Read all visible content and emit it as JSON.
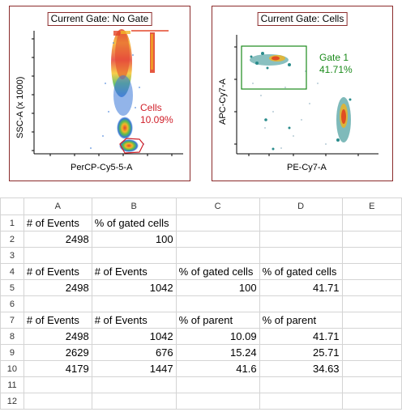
{
  "plot1": {
    "title": "Current Gate: No Gate",
    "ylabel": "SSC-A (x 1000)",
    "xlabel": "PerCP-Cy5-5-A",
    "gate_label": "Cells",
    "gate_value": "10.09%",
    "gate_color": "#d0202a"
  },
  "plot2": {
    "title": "Current Gate: Cells",
    "ylabel": "APC-Cy7-A",
    "xlabel": "PE-Cy7-A",
    "gate_label": "Gate 1",
    "gate_value": "41.71%",
    "gate_color": "#1a8a1a"
  },
  "sheet": {
    "columns": [
      "A",
      "B",
      "C",
      "D",
      "E"
    ],
    "rows": [
      {
        "n": "1",
        "cells": [
          "# of Events",
          "% of gated cells",
          "",
          "",
          ""
        ],
        "align": [
          "t",
          "t",
          "t",
          "t",
          "t"
        ]
      },
      {
        "n": "2",
        "cells": [
          "2498",
          "100",
          "",
          "",
          ""
        ],
        "align": [
          "n",
          "n",
          "t",
          "t",
          "t"
        ]
      },
      {
        "n": "3",
        "cells": [
          "",
          "",
          "",
          "",
          ""
        ],
        "align": [
          "t",
          "t",
          "t",
          "t",
          "t"
        ]
      },
      {
        "n": "4",
        "cells": [
          "# of Events",
          "# of Events",
          "% of gated cells",
          "% of gated cells",
          ""
        ],
        "align": [
          "t",
          "t",
          "t",
          "t",
          "t"
        ]
      },
      {
        "n": "5",
        "cells": [
          "2498",
          "1042",
          "100",
          "41.71",
          ""
        ],
        "align": [
          "n",
          "n",
          "n",
          "n",
          "t"
        ]
      },
      {
        "n": "6",
        "cells": [
          "",
          "",
          "",
          "",
          ""
        ],
        "align": [
          "t",
          "t",
          "t",
          "t",
          "t"
        ]
      },
      {
        "n": "7",
        "cells": [
          "# of Events",
          "# of Events",
          "% of parent",
          "% of parent",
          ""
        ],
        "align": [
          "t",
          "t",
          "t",
          "t",
          "t"
        ]
      },
      {
        "n": "8",
        "cells": [
          "2498",
          "1042",
          "10.09",
          "41.71",
          ""
        ],
        "align": [
          "n",
          "n",
          "n",
          "n",
          "t"
        ]
      },
      {
        "n": "9",
        "cells": [
          "2629",
          "676",
          "15.24",
          "25.71",
          ""
        ],
        "align": [
          "n",
          "n",
          "n",
          "n",
          "t"
        ]
      },
      {
        "n": "10",
        "cells": [
          "4179",
          "1447",
          "41.6",
          "34.63",
          ""
        ],
        "align": [
          "n",
          "n",
          "n",
          "n",
          "t"
        ]
      },
      {
        "n": "11",
        "cells": [
          "",
          "",
          "",
          "",
          ""
        ],
        "align": [
          "t",
          "t",
          "t",
          "t",
          "t"
        ]
      },
      {
        "n": "12",
        "cells": [
          "",
          "",
          "",
          "",
          ""
        ],
        "align": [
          "t",
          "t",
          "t",
          "t",
          "t"
        ]
      }
    ]
  }
}
